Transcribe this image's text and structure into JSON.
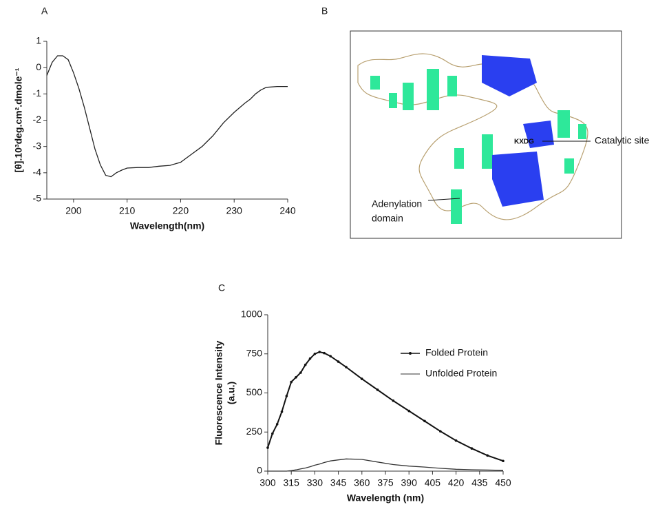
{
  "chart_data": [
    {
      "type": "line",
      "panel": "A",
      "x_label": "Wavelength(nm)",
      "y_label": [
        "[θ].10³deg.cm².dmole⁻¹"
      ],
      "xlim": [
        195,
        240
      ],
      "xticks": [
        200,
        210,
        220,
        230,
        240
      ],
      "ylim": [
        -5,
        1
      ],
      "yticks": [
        -5,
        -4,
        -3,
        -2,
        -1,
        0,
        1
      ],
      "color": "#222222",
      "x": [
        195,
        196,
        197,
        198,
        199,
        200,
        201,
        202,
        203,
        204,
        205,
        206,
        207,
        208,
        209,
        210,
        212,
        214,
        216,
        218,
        220,
        222,
        224,
        226,
        228,
        230,
        232,
        233,
        234,
        235,
        236,
        238,
        240
      ],
      "values": [
        -0.3,
        0.2,
        0.45,
        0.45,
        0.3,
        -0.2,
        -0.8,
        -1.5,
        -2.3,
        -3.1,
        -3.7,
        -4.1,
        -4.15,
        -4.0,
        -3.9,
        -3.82,
        -3.8,
        -3.8,
        -3.75,
        -3.72,
        -3.6,
        -3.3,
        -3.0,
        -2.6,
        -2.1,
        -1.7,
        -1.35,
        -1.2,
        -1.0,
        -0.85,
        -0.75,
        -0.72,
        -0.72
      ]
    },
    {
      "type": "line",
      "panel": "C",
      "x_label": "Wavelength (nm)",
      "y_label": [
        "Fluorescence Intensity",
        "(a.u.)"
      ],
      "xlim": [
        300,
        450
      ],
      "xticks": [
        300,
        315,
        330,
        345,
        360,
        375,
        390,
        405,
        420,
        435,
        450
      ],
      "ylim": [
        0,
        1000
      ],
      "yticks": [
        0,
        250,
        500,
        750,
        1000
      ],
      "x": [
        300,
        303,
        306,
        309,
        312,
        315,
        318,
        321,
        324,
        327,
        330,
        333,
        336,
        340,
        345,
        350,
        360,
        370,
        380,
        390,
        400,
        410,
        420,
        430,
        440,
        450
      ],
      "series": [
        {
          "name": "Folded Protein",
          "color": "#111111",
          "markers": true,
          "values": [
            150,
            240,
            300,
            380,
            480,
            570,
            600,
            630,
            680,
            720,
            750,
            762,
            755,
            735,
            700,
            665,
            590,
            520,
            450,
            385,
            320,
            255,
            195,
            145,
            100,
            65
          ]
        },
        {
          "name": "Unfolded Protein",
          "color": "#333333",
          "markers": false,
          "values": [
            0,
            0,
            0,
            0,
            0,
            3,
            8,
            14,
            20,
            28,
            38,
            45,
            55,
            65,
            72,
            78,
            75,
            58,
            42,
            32,
            26,
            18,
            12,
            9,
            7,
            5
          ]
        }
      ]
    }
  ],
  "structure_panel": {
    "panel": "B",
    "motif": "KXDG",
    "catalytic": "Catalytic site",
    "adenylation": [
      "Adenylation",
      "domain"
    ]
  }
}
